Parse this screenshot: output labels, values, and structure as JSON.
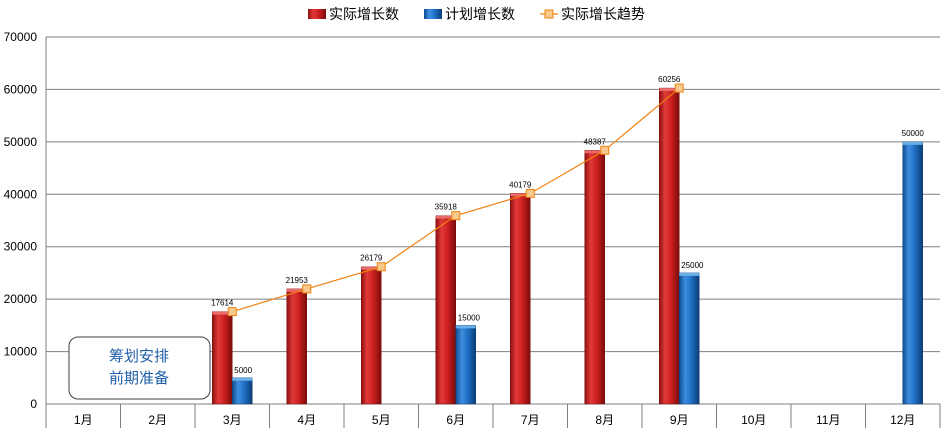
{
  "chart_data": {
    "type": "bar",
    "categories": [
      "1月",
      "2月",
      "3月",
      "4月",
      "5月",
      "6月",
      "7月",
      "8月",
      "9月",
      "10月",
      "11月",
      "12月"
    ],
    "series": [
      {
        "name": "实际增长数",
        "kind": "bar",
        "color": "#cc1f1f",
        "values": [
          null,
          null,
          17614,
          21953,
          26179,
          35918,
          40179,
          48387,
          60256,
          null,
          null,
          null
        ]
      },
      {
        "name": "计划增长数",
        "kind": "bar",
        "color": "#1f6fc4",
        "values": [
          null,
          null,
          5000,
          null,
          null,
          15000,
          null,
          null,
          25000,
          null,
          null,
          50000
        ]
      },
      {
        "name": "实际增长趋势",
        "kind": "line",
        "color": "#f0820f",
        "marker_color": "#f7c98d",
        "values": [
          null,
          null,
          17614,
          21953,
          26179,
          35918,
          40179,
          48387,
          60256,
          null,
          null,
          null
        ]
      }
    ],
    "ylim": [
      0,
      70000
    ],
    "yticks": [
      0,
      10000,
      20000,
      30000,
      40000,
      50000,
      60000,
      70000
    ],
    "grid": true,
    "legend": "top-center",
    "annotation": {
      "lines": [
        "筹划安排",
        "前期准备"
      ]
    }
  }
}
